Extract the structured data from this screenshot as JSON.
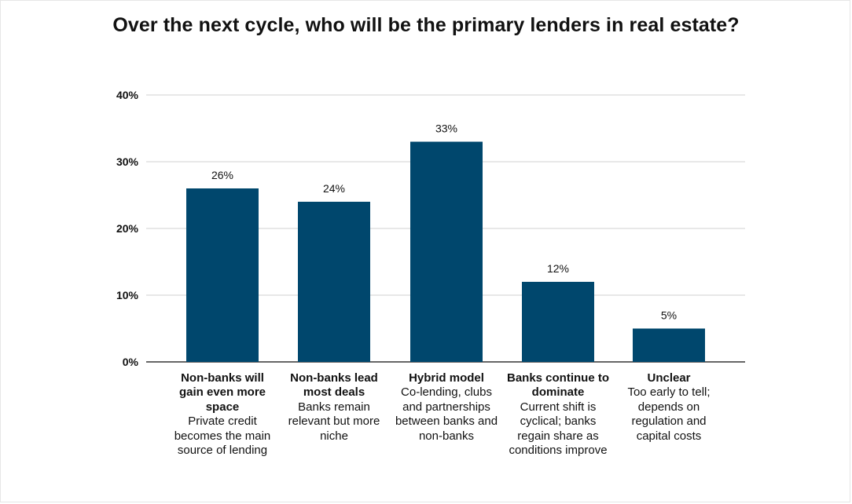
{
  "title": "Over the next cycle, who will be the primary lenders in real estate?",
  "colors": {
    "bar": "#00476d",
    "grid": "#d0d0d0",
    "axis": "#333333",
    "text": "#111111"
  },
  "chart_data": {
    "type": "bar",
    "title": "Over the next cycle, who will be the primary lenders in real estate?",
    "xlabel": "",
    "ylabel": "",
    "ylim": [
      0,
      40
    ],
    "yticks": [
      0,
      10,
      20,
      30,
      40
    ],
    "ytick_labels": [
      "0%",
      "10%",
      "20%",
      "30%",
      "40%"
    ],
    "grid": true,
    "categories": [
      {
        "label": "Non-banks will gain even more space",
        "description": "Private credit becomes the main source of lending"
      },
      {
        "label": "Non-banks lead most deals",
        "description": "Banks remain relevant but more niche"
      },
      {
        "label": "Hybrid model",
        "description": "Co-lending, clubs and partnerships between banks and non-banks"
      },
      {
        "label": "Banks continue to dominate",
        "description": "Current shift is cyclical; banks regain share as conditions improve"
      },
      {
        "label": "Unclear",
        "description": "Too early to tell; depends on regulation and capital costs"
      }
    ],
    "values": [
      26,
      24,
      33,
      12,
      5
    ],
    "data_labels": [
      "26%",
      "24%",
      "33%",
      "12%",
      "5%"
    ]
  }
}
